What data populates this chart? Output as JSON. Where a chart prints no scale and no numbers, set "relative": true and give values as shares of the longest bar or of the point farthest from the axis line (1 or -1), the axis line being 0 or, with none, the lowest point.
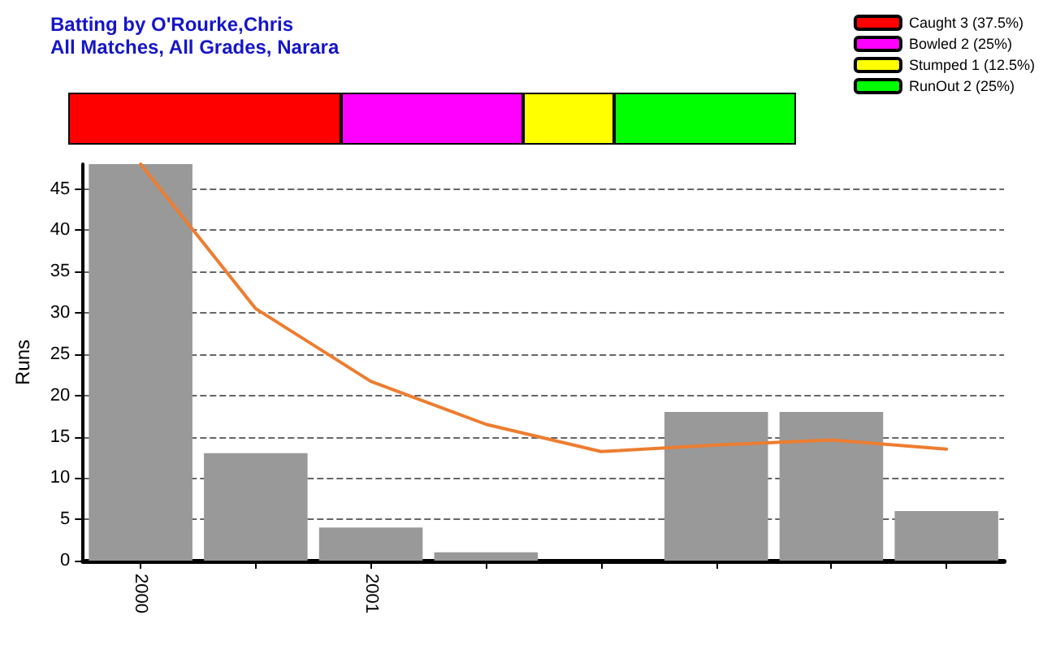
{
  "chart_data": [
    {
      "type": "bar",
      "title": "Batting by O'Rourke,Chris",
      "subtitle": "All Matches, All Grades, Narara",
      "orientation": "horizontal",
      "stacked": true,
      "categories": [
        null
      ],
      "relative": true,
      "legend": "top right",
      "series": [
        {
          "name": "Caught 3 (37.5%)",
          "color": "#ff0000",
          "values": [
            0.375
          ]
        },
        {
          "name": "Bowled 2 (25%)",
          "color": "#ff00ff",
          "values": [
            0.25
          ]
        },
        {
          "name": "Stumped 1 (12.5%)",
          "color": "#ffff00",
          "values": [
            0.125
          ]
        },
        {
          "name": "RunOut 2 (25%)",
          "color": "#00ff00",
          "values": [
            0.25
          ]
        }
      ]
    },
    {
      "type": "bar",
      "ylabel": "Runs",
      "categories": [
        "2000",
        null,
        "2001",
        null,
        null,
        null,
        null,
        null
      ],
      "ylim": [
        0,
        48
      ],
      "yticks": [
        0,
        5,
        10,
        15,
        20,
        25,
        30,
        35,
        40,
        45
      ],
      "grid": "y",
      "series": [
        {
          "color": "#999999",
          "values": [
            48,
            13,
            4,
            1,
            0,
            18,
            18,
            6
          ]
        },
        {
          "type": "line",
          "color": "#ed7d31",
          "marker": "none",
          "line_style": "solid",
          "values": [
            48,
            30.5,
            21.7,
            16.5,
            13.2,
            14,
            14.6,
            13.5
          ]
        }
      ]
    }
  ]
}
